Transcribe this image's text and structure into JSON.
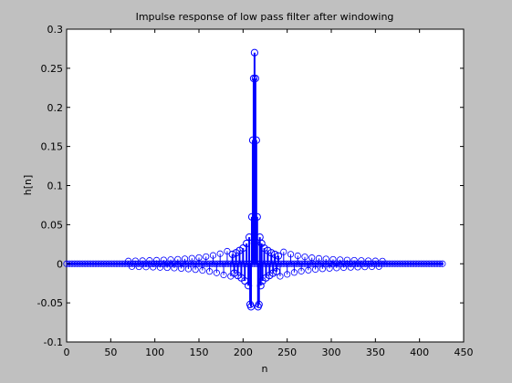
{
  "chart_data": {
    "type": "stem",
    "title": "Impulse response of low pass filter after windowing",
    "xlabel": "n",
    "ylabel": "h[n]",
    "xlim": [
      0,
      450
    ],
    "ylim": [
      -0.1,
      0.3
    ],
    "xticks": [
      0,
      50,
      100,
      150,
      200,
      250,
      300,
      350,
      400,
      450
    ],
    "yticks": [
      -0.1,
      -0.05,
      0,
      0.05,
      0.1,
      0.15,
      0.2,
      0.25,
      0.3
    ],
    "xtick_labels": [
      "0",
      "50",
      "100",
      "150",
      "200",
      "250",
      "300",
      "350",
      "400",
      "450"
    ],
    "ytick_labels": [
      "-0.1",
      "-0.05",
      "0",
      "0.05",
      "0.1",
      "0.15",
      "0.2",
      "0.25",
      "0.3"
    ],
    "grid": false,
    "series": [
      {
        "color": "#0000ff",
        "marker": "circle",
        "x": [
          188,
          190,
          192,
          194,
          196,
          198,
          200,
          202,
          204,
          206,
          207,
          208,
          209,
          210,
          211,
          212,
          213,
          214,
          215,
          216,
          217,
          218,
          219,
          220,
          221,
          222,
          224,
          226,
          228,
          230,
          232,
          234,
          236,
          238,
          240
        ],
        "y": [
          0.012,
          -0.012,
          0.014,
          -0.015,
          0.017,
          -0.018,
          0.02,
          -0.022,
          0.026,
          -0.028,
          0.034,
          -0.052,
          -0.055,
          0.06,
          0.158,
          0.237,
          0.27,
          0.237,
          0.158,
          0.06,
          -0.055,
          -0.052,
          0.034,
          -0.028,
          0.026,
          -0.022,
          0.02,
          -0.018,
          0.017,
          -0.015,
          0.014,
          -0.012,
          0.012,
          -0.01,
          0.01
        ]
      }
    ]
  }
}
